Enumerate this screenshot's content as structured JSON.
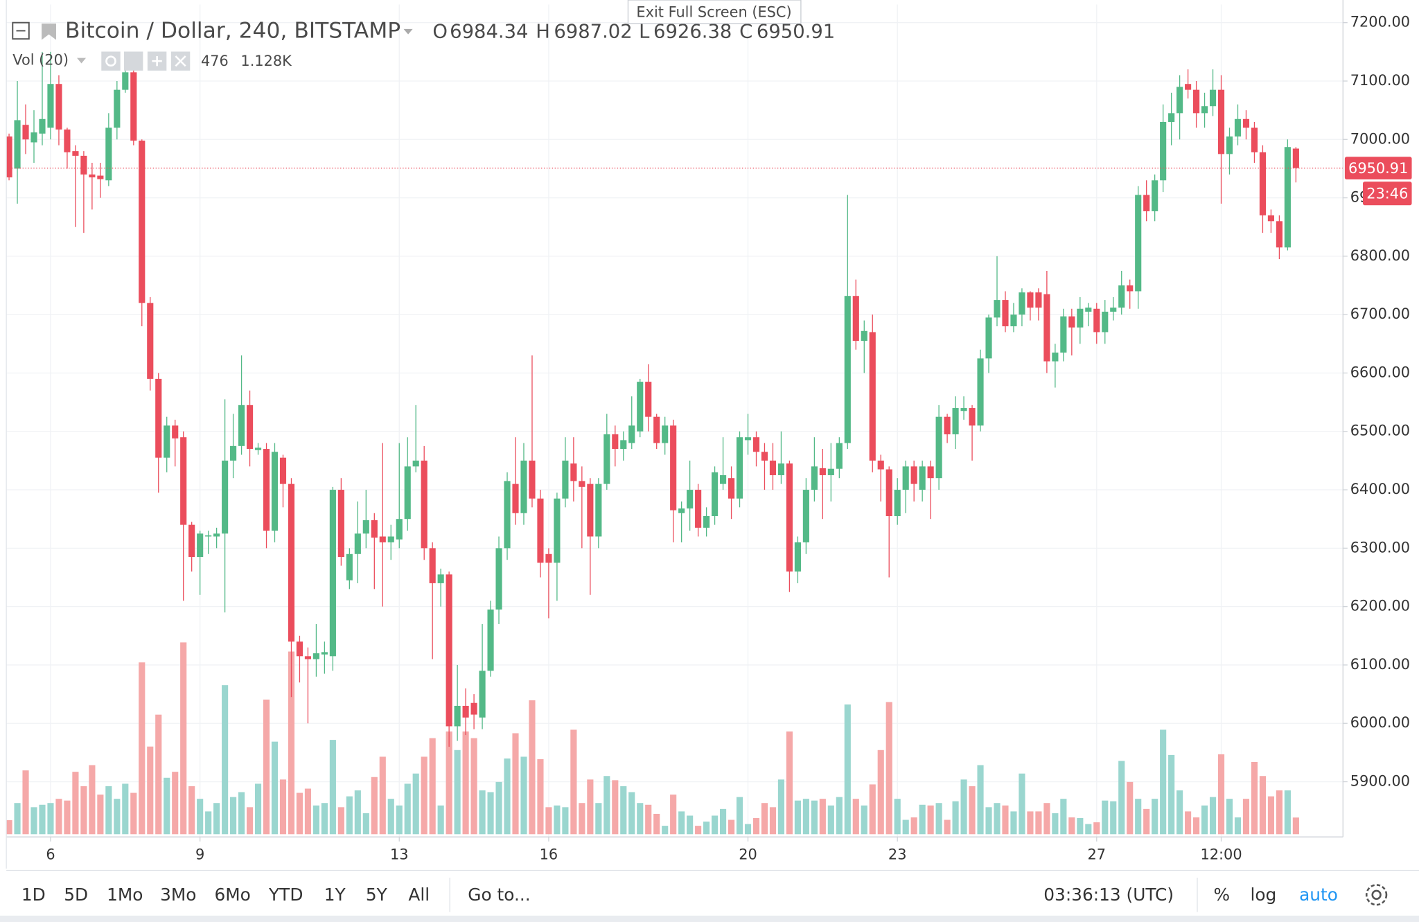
{
  "chart_data": {
    "type": "candlestick",
    "symbol": "Bitcoin / Dollar, 240, BITSTAMP",
    "ohlc_labels": [
      "O",
      "H",
      "L",
      "C"
    ],
    "volume_label": "Vol (20)",
    "volume_ma": {
      "value": 1128,
      "label": "1.128K"
    },
    "countdown": "23:46",
    "up_color": "#53b987",
    "down_color": "#eb4d5c",
    "volume_up_color": "#9ad6cf",
    "volume_down_color": "#f5a8a8",
    "grid": true,
    "log_scale": false,
    "ylim": [
      5805.5,
      7231
    ],
    "yticks": [
      {
        "value": 5900,
        "label": "5900.00"
      },
      {
        "value": 6000,
        "label": "6000.00"
      },
      {
        "value": 6100,
        "label": "6100.00"
      },
      {
        "value": 6200,
        "label": "6200.00"
      },
      {
        "value": 6300,
        "label": "6300.00"
      },
      {
        "value": 6400,
        "label": "6400.00"
      },
      {
        "value": 6500,
        "label": "6500.00"
      },
      {
        "value": 6600,
        "label": "6600.00"
      },
      {
        "value": 6700,
        "label": "6700.00"
      },
      {
        "value": 6800,
        "label": "6800.00"
      },
      {
        "value": 6900,
        "label": "6900.00"
      },
      {
        "value": 7000,
        "label": "7000.00"
      },
      {
        "value": 7100,
        "label": "7100.00"
      },
      {
        "value": 7200,
        "label": "7200.00"
      }
    ],
    "categories": [
      null,
      null,
      null,
      null,
      null,
      "6",
      null,
      null,
      null,
      null,
      null,
      null,
      null,
      null,
      null,
      null,
      null,
      null,
      null,
      null,
      null,
      null,
      null,
      "9",
      null,
      null,
      null,
      null,
      null,
      null,
      null,
      null,
      null,
      null,
      null,
      null,
      null,
      null,
      null,
      null,
      null,
      null,
      null,
      null,
      null,
      null,
      null,
      "13",
      null,
      null,
      null,
      null,
      null,
      null,
      null,
      null,
      null,
      null,
      null,
      null,
      null,
      null,
      null,
      null,
      null,
      "16",
      null,
      null,
      null,
      null,
      null,
      null,
      null,
      null,
      null,
      null,
      null,
      null,
      null,
      null,
      null,
      null,
      null,
      null,
      null,
      null,
      null,
      null,
      null,
      "20",
      null,
      null,
      null,
      null,
      null,
      null,
      null,
      null,
      null,
      null,
      null,
      null,
      null,
      null,
      null,
      null,
      null,
      "23",
      null,
      null,
      null,
      null,
      null,
      null,
      null,
      null,
      null,
      null,
      null,
      null,
      null,
      null,
      null,
      null,
      null,
      null,
      null,
      null,
      null,
      null,
      null,
      "27",
      null,
      null,
      null,
      null,
      null,
      null,
      null,
      null,
      null,
      null,
      null,
      null,
      null,
      null,
      "12:00",
      null,
      null,
      null,
      null,
      null,
      null,
      null,
      null,
      null
    ],
    "open": [
      7005,
      6950,
      7025,
      6995,
      7010,
      7020,
      7095,
      7017,
      6980,
      6972,
      6940,
      6938,
      6930,
      7020,
      7085,
      7115,
      6998,
      6720,
      6590,
      6455,
      6510,
      6490,
      6340,
      6285,
      6320,
      6320,
      6325,
      6450,
      6475,
      6545,
      6468,
      6470,
      6330,
      6455,
      6410,
      6140,
      6115,
      6110,
      6118,
      6115,
      6400,
      6245,
      6290,
      6325,
      6348,
      6320,
      6310,
      6315,
      6350,
      6440,
      6450,
      6300,
      6240,
      6255,
      5995,
      6030,
      6035,
      6010,
      6090,
      6195,
      6300,
      6410,
      6360,
      6450,
      6385,
      6290,
      6275,
      6385,
      6445,
      6415,
      6410,
      6320,
      6410,
      6495,
      6470,
      6480,
      6500,
      6585,
      6525,
      6480,
      6510,
      6360,
      6368,
      6400,
      6335,
      6355,
      6410,
      6420,
      6385,
      6485,
      6490,
      6465,
      6450,
      6425,
      6445,
      6260,
      6310,
      6400,
      6437,
      6425,
      6436,
      6480,
      6732,
      6655,
      6670,
      6450,
      6435,
      6355,
      6400,
      6440,
      6400,
      6440,
      6420,
      6525,
      6495,
      6535,
      6540,
      6510,
      6625,
      6695,
      6725,
      6680,
      6700,
      6738,
      6738,
      6735,
      6620,
      6635,
      6697,
      6678,
      6705,
      6710,
      6670,
      6705,
      6712,
      6750,
      6740,
      6905,
      6877,
      6930,
      7030,
      7045,
      7095,
      7085,
      7045,
      7057,
      7085,
      6975,
      7005,
      7035,
      7020,
      6978,
      6870,
      6860,
      6815,
      6984.34
    ],
    "high": [
      7010,
      7100,
      7060,
      7050,
      7150,
      7150,
      7110,
      7020,
      6990,
      6980,
      6960,
      6960,
      7045,
      7100,
      7150,
      7130,
      7000,
      6730,
      6600,
      6525,
      6520,
      6500,
      6345,
      6330,
      6330,
      6335,
      6555,
      6530,
      6630,
      6570,
      6480,
      6480,
      6480,
      6460,
      6420,
      6150,
      6130,
      6170,
      6140,
      6405,
      6420,
      6300,
      6380,
      6400,
      6360,
      6480,
      6340,
      6480,
      6490,
      6545,
      6475,
      6310,
      6265,
      6260,
      6100,
      6060,
      6050,
      6170,
      6210,
      6320,
      6430,
      6490,
      6480,
      6630,
      6400,
      6300,
      6395,
      6490,
      6490,
      6440,
      6420,
      6420,
      6530,
      6510,
      6500,
      6560,
      6590,
      6615,
      6530,
      6525,
      6520,
      6380,
      6450,
      6410,
      6370,
      6440,
      6490,
      6440,
      6500,
      6530,
      6500,
      6480,
      6480,
      6500,
      6450,
      6320,
      6420,
      6490,
      6470,
      6480,
      6490,
      6905,
      6760,
      6690,
      6700,
      6460,
      6440,
      6420,
      6450,
      6450,
      6450,
      6450,
      6545,
      6530,
      6560,
      6560,
      6545,
      6640,
      6700,
      6800,
      6740,
      6720,
      6745,
      6740,
      6745,
      6775,
      6650,
      6710,
      6710,
      6730,
      6720,
      6720,
      6725,
      6730,
      6775,
      6760,
      6920,
      6930,
      6940,
      7060,
      7080,
      7110,
      7120,
      7100,
      7080,
      7120,
      7110,
      7020,
      7060,
      7050,
      7030,
      6990,
      6880,
      6870,
      7000,
      6987.02
    ],
    "low": [
      6930,
      6890,
      6975,
      6960,
      6990,
      7000,
      6990,
      6950,
      6850,
      6840,
      6880,
      6900,
      6920,
      7000,
      7080,
      6990,
      6680,
      6570,
      6395,
      6430,
      6440,
      6210,
      6260,
      6220,
      6290,
      6300,
      6190,
      6420,
      6460,
      6440,
      6460,
      6300,
      6310,
      6370,
      6045,
      6070,
      6000,
      6080,
      6085,
      6090,
      6270,
      6230,
      6240,
      6300,
      6230,
      6200,
      6280,
      6300,
      6330,
      6430,
      6280,
      6110,
      6200,
      5960,
      5970,
      5980,
      5990,
      5990,
      6080,
      6170,
      6280,
      6340,
      6340,
      6370,
      6250,
      6180,
      6210,
      6370,
      6380,
      6300,
      6220,
      6300,
      6400,
      6440,
      6450,
      6470,
      6490,
      6500,
      6470,
      6460,
      6310,
      6310,
      6330,
      6320,
      6320,
      6340,
      6400,
      6350,
      6370,
      6460,
      6440,
      6400,
      6400,
      6410,
      6225,
      6240,
      6290,
      6380,
      6350,
      6380,
      6420,
      6470,
      6640,
      6600,
      6430,
      6380,
      6250,
      6340,
      6360,
      6380,
      6380,
      6350,
      6400,
      6480,
      6470,
      6520,
      6450,
      6500,
      6600,
      6680,
      6670,
      6670,
      6680,
      6690,
      6690,
      6600,
      6575,
      6620,
      6630,
      6650,
      6680,
      6650,
      6650,
      6690,
      6700,
      6710,
      6710,
      6860,
      6860,
      6910,
      6990,
      7000,
      7070,
      7020,
      7020,
      7040,
      6890,
      6940,
      6990,
      7000,
      6960,
      6840,
      6840,
      6795,
      6810,
      6926.38
    ],
    "close": [
      6935,
      7033,
      7000,
      7012,
      7035,
      7095,
      7017,
      6978,
      6972,
      6940,
      6935,
      6932,
      7020,
      7085,
      7115,
      6998,
      6720,
      6590,
      6455,
      6510,
      6488,
      6340,
      6285,
      6325,
      6322,
      6325,
      6450,
      6475,
      6545,
      6470,
      6472,
      6330,
      6465,
      6410,
      6140,
      6115,
      6110,
      6120,
      6122,
      6400,
      6285,
      6290,
      6325,
      6348,
      6318,
      6310,
      6320,
      6350,
      6440,
      6450,
      6300,
      6240,
      6255,
      5995,
      6030,
      6010,
      6015,
      6090,
      6195,
      6300,
      6415,
      6360,
      6450,
      6385,
      6275,
      6275,
      6385,
      6450,
      6415,
      6405,
      6320,
      6410,
      6495,
      6470,
      6485,
      6510,
      6585,
      6525,
      6480,
      6510,
      6365,
      6368,
      6400,
      6335,
      6355,
      6430,
      6425,
      6385,
      6490,
      6490,
      6465,
      6450,
      6425,
      6445,
      6260,
      6310,
      6400,
      6440,
      6425,
      6436,
      6480,
      6732,
      6655,
      6672,
      6450,
      6435,
      6355,
      6400,
      6440,
      6410,
      6440,
      6420,
      6525,
      6495,
      6540,
      6540,
      6510,
      6625,
      6695,
      6725,
      6680,
      6700,
      6738,
      6712,
      6712,
      6620,
      6635,
      6697,
      6678,
      6710,
      6712,
      6670,
      6705,
      6712,
      6750,
      6740,
      6905,
      6877,
      6930,
      7030,
      7045,
      7090,
      7085,
      7045,
      7057,
      7085,
      6975,
      7005,
      7035,
      7020,
      6978,
      6870,
      6860,
      6815,
      6987,
      6950.91
    ],
    "volume": [
      400,
      890,
      1820,
      770,
      840,
      890,
      1010,
      960,
      1780,
      1370,
      1970,
      1130,
      1370,
      1010,
      1440,
      1180,
      4900,
      2500,
      3410,
      1610,
      1780,
      5470,
      1370,
      1010,
      650,
      890,
      4250,
      1060,
      1200,
      770,
      1440,
      3840,
      2640,
      1560,
      5210,
      1180,
      1300,
      820,
      890,
      2690,
      770,
      1080,
      1250,
      600,
      1630,
      2210,
      1010,
      820,
      1440,
      1730,
      2210,
      2740,
      820,
      2930,
      2400,
      2930,
      2740,
      1250,
      1200,
      1490,
      2160,
      2880,
      2210,
      3820,
      2140,
      770,
      820,
      770,
      2980,
      890,
      1560,
      890,
      1660,
      1540,
      1370,
      1200,
      890,
      840,
      580,
      240,
      1130,
      650,
      530,
      240,
      360,
      530,
      720,
      410,
      1060,
      290,
      460,
      890,
      770,
      1560,
      2930,
      960,
      1010,
      960,
      1010,
      820,
      1060,
      3700,
      1010,
      820,
      1420,
      2400,
      3770,
      1010,
      410,
      480,
      840,
      820,
      890,
      410,
      940,
      1560,
      1370,
      1970,
      770,
      890,
      820,
      650,
      1730,
      650,
      650,
      890,
      600,
      1010,
      480,
      460,
      290,
      340,
      960,
      940,
      2090,
      1490,
      1010,
      720,
      1010,
      2980,
      2260,
      1250,
      650,
      480,
      820,
      1060,
      2280,
      1010,
      480,
      1010,
      2060,
      1660,
      1080,
      1250,
      1250,
      476
    ]
  },
  "exit_fullscreen": "Exit Full Screen (ESC)",
  "toolbar": {
    "ranges": [
      "1D",
      "5D",
      "1Mo",
      "3Mo",
      "6Mo",
      "YTD",
      "1Y",
      "5Y",
      "All"
    ],
    "goto": "Go to...",
    "clock": "03:36:13 (UTC)",
    "percent": "%",
    "log": "log",
    "auto": "auto"
  }
}
